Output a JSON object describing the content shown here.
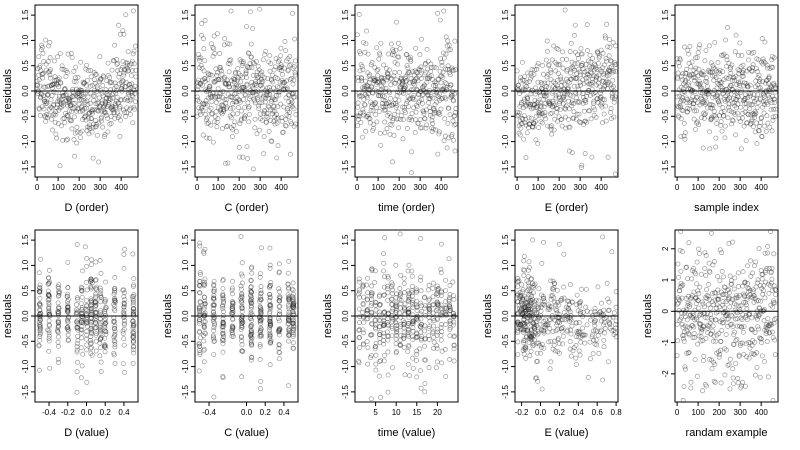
{
  "figure": {
    "grid": "2x5",
    "point_style": "open circles, semi-transparent grey",
    "colors": {
      "points": "#222222",
      "axes": "#000000",
      "background": "#ffffff"
    }
  },
  "chart_data": [
    {
      "type": "scatter",
      "xlabel": "D (order)",
      "ylabel": "residuals",
      "xlim": [
        -10,
        480
      ],
      "ylim": [
        -1.7,
        1.7
      ],
      "xticks": [
        0,
        100,
        200,
        300,
        400
      ],
      "yticks": [
        -1.5,
        -1.0,
        -0.5,
        0.0,
        0.5,
        1.0,
        1.5
      ],
      "hline": 0,
      "pattern": "curved",
      "n": 470,
      "xmin": 0,
      "xmax": 470,
      "spread": 0.38,
      "seed": 11
    },
    {
      "type": "scatter",
      "xlabel": "C (order)",
      "ylabel": "residuals",
      "xlim": [
        -10,
        480
      ],
      "ylim": [
        -1.7,
        1.7
      ],
      "xticks": [
        0,
        100,
        200,
        300,
        400
      ],
      "yticks": [
        -1.5,
        -1.0,
        -0.5,
        0.0,
        0.5,
        1.0,
        1.5
      ],
      "hline": 0,
      "pattern": "flat",
      "n": 470,
      "xmin": 0,
      "xmax": 470,
      "spread": 0.45,
      "seed": 23
    },
    {
      "type": "scatter",
      "xlabel": "time (order)",
      "ylabel": "residuals",
      "xlim": [
        -10,
        480
      ],
      "ylim": [
        -1.7,
        1.7
      ],
      "xticks": [
        0,
        100,
        200,
        300,
        400
      ],
      "yticks": [
        -1.5,
        -1.0,
        -0.5,
        0.0,
        0.5,
        1.0,
        1.5
      ],
      "hline": 0,
      "pattern": "flat",
      "n": 470,
      "xmin": 0,
      "xmax": 470,
      "spread": 0.45,
      "seed": 37
    },
    {
      "type": "scatter",
      "xlabel": "E (order)",
      "ylabel": "residuals",
      "xlim": [
        -10,
        480
      ],
      "ylim": [
        -1.7,
        1.7
      ],
      "xticks": [
        0,
        100,
        200,
        300,
        400
      ],
      "yticks": [
        -1.5,
        -1.0,
        -0.5,
        0.0,
        0.5,
        1.0,
        1.5
      ],
      "hline": 0,
      "pattern": "rising",
      "n": 470,
      "xmin": 0,
      "xmax": 470,
      "spread": 0.42,
      "seed": 41
    },
    {
      "type": "scatter",
      "xlabel": "sample index",
      "ylabel": "residuals",
      "xlim": [
        -10,
        480
      ],
      "ylim": [
        -1.7,
        1.7
      ],
      "xticks": [
        0,
        100,
        200,
        300,
        400
      ],
      "yticks": [
        -1.5,
        -1.0,
        -0.5,
        0.0,
        0.5,
        1.0,
        1.5
      ],
      "hline": 0,
      "pattern": "flat",
      "n": 470,
      "xmin": 0,
      "xmax": 470,
      "spread": 0.45,
      "seed": 53
    },
    {
      "type": "scatter",
      "xlabel": "D (value)",
      "ylabel": "residuals",
      "xlim": [
        -0.55,
        0.55
      ],
      "ylim": [
        -1.7,
        1.7
      ],
      "xticks": [
        -0.4,
        -0.2,
        0.0,
        0.2,
        0.4
      ],
      "xtick_labels": [
        "-0.4",
        "-0.2",
        "0.0",
        "0.2",
        "0.4"
      ],
      "yticks": [
        -1.5,
        -1.0,
        -0.5,
        0.0,
        0.5,
        1.0,
        1.5
      ],
      "hline": 0,
      "pattern": "columns",
      "columns": [
        -0.5,
        -0.4,
        -0.3,
        -0.2,
        -0.1,
        -0.05,
        0.0,
        0.05,
        0.1,
        0.15,
        0.2,
        0.3,
        0.4,
        0.5
      ],
      "n": 470,
      "spread": 0.42,
      "seed": 67
    },
    {
      "type": "scatter",
      "xlabel": "C (value)",
      "ylabel": "residuals",
      "xlim": [
        -0.55,
        0.55
      ],
      "ylim": [
        -1.7,
        1.7
      ],
      "xticks": [
        -0.4,
        0.0,
        0.2,
        0.4
      ],
      "xtick_labels": [
        "-0.4",
        "0.0",
        "0.2",
        "0.4"
      ],
      "yticks": [
        -1.5,
        -1.0,
        -0.5,
        0.0,
        0.5,
        1.0,
        1.5
      ],
      "hline": 0,
      "pattern": "columns",
      "columns": [
        -0.5,
        -0.45,
        -0.35,
        -0.25,
        -0.15,
        -0.05,
        0.05,
        0.15,
        0.25,
        0.35,
        0.45,
        0.5
      ],
      "n": 470,
      "spread": 0.45,
      "seed": 71
    },
    {
      "type": "scatter",
      "xlabel": "time (value)",
      "ylabel": "residuals",
      "xlim": [
        0,
        25
      ],
      "ylim": [
        -1.7,
        1.7
      ],
      "xticks": [
        5,
        10,
        15,
        20
      ],
      "xtick_labels": [
        "5",
        "10",
        "15",
        "20"
      ],
      "yticks": [
        -1.5,
        -1.0,
        -0.5,
        0.0,
        0.5,
        1.0,
        1.5
      ],
      "hline": 0,
      "pattern": "columns",
      "columns": [
        1,
        2,
        3,
        4,
        5,
        6,
        7,
        8,
        9,
        10,
        11,
        12,
        13,
        14,
        15,
        16,
        17,
        18,
        19,
        20,
        21,
        22,
        23,
        24
      ],
      "n": 470,
      "spread": 0.45,
      "seed": 83
    },
    {
      "type": "scatter",
      "xlabel": "E (value)",
      "ylabel": "residuals",
      "xlim": [
        -0.27,
        0.82
      ],
      "ylim": [
        -1.7,
        1.7
      ],
      "xticks": [
        -0.2,
        0.0,
        0.2,
        0.4,
        0.6,
        0.8
      ],
      "xtick_labels": [
        "-0.2",
        "0.0",
        "0.2",
        "0.4",
        "0.6",
        "0.8"
      ],
      "yticks": [
        -1.5,
        -1.0,
        -0.5,
        0.0,
        0.5,
        1.0,
        1.5
      ],
      "hline": 0,
      "pattern": "skewed",
      "n": 470,
      "spread": 0.45,
      "seed": 97
    },
    {
      "type": "scatter",
      "xlabel": "randam example",
      "ylabel": "residuals",
      "xlim": [
        -10,
        480
      ],
      "ylim": [
        -2.9,
        2.6
      ],
      "xticks": [
        0,
        100,
        200,
        300,
        400
      ],
      "yticks": [
        -2,
        -1,
        0,
        1,
        2
      ],
      "ytick_labels": [
        "-2",
        "-1",
        "0",
        "1",
        "2"
      ],
      "hline": 0,
      "pattern": "flat",
      "n": 470,
      "xmin": 0,
      "xmax": 470,
      "spread": 0.95,
      "seed": 101
    }
  ]
}
